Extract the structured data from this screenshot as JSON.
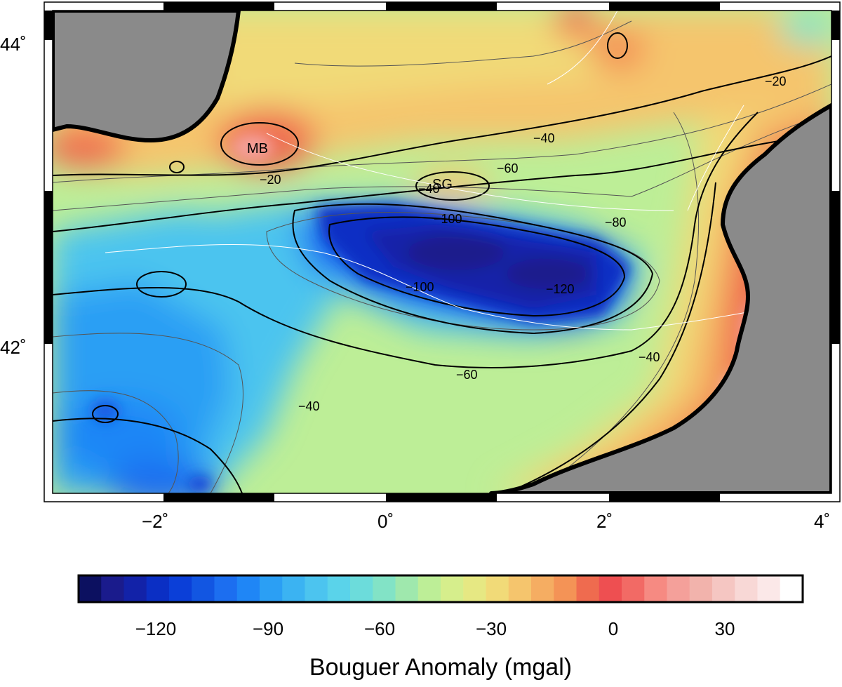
{
  "map": {
    "lon_ticks": [
      "−2˚",
      "0˚",
      "2˚",
      "4˚"
    ],
    "lat_ticks": [
      "44˚",
      "42˚"
    ],
    "land_color": "#8a8a8a",
    "coast_color": "#000000",
    "contour_labels": [
      "−20",
      "−20",
      "−40",
      "−40",
      "−40",
      "−40",
      "−60",
      "−60",
      "−80",
      "−100",
      "−100",
      "−120"
    ],
    "feature_labels": [
      "MB",
      "SG"
    ]
  },
  "colorbar": {
    "title": "Bouguer Anomaly (mgal)",
    "ticks": [
      "−120",
      "−90",
      "−60",
      "−30",
      "0",
      "30"
    ],
    "colors": [
      "#0c1060",
      "#1a1b8c",
      "#1222a8",
      "#0b2fc4",
      "#0b3fd8",
      "#1256e2",
      "#1c6ef0",
      "#1f86f6",
      "#2b9ff4",
      "#3bb3f2",
      "#4cc4ef",
      "#5ad3ea",
      "#6cdcdb",
      "#82e3c6",
      "#9fe8ad",
      "#bdee97",
      "#d6ee8c",
      "#e6e883",
      "#f1da78",
      "#f5c56d",
      "#f5ad62",
      "#f49356",
      "#ef6b4f",
      "#ee4f51",
      "#f26a65",
      "#f68a82",
      "#f4a09a",
      "#f2b3ac",
      "#f5c6c2",
      "#f8d8d6",
      "#fbe8e8",
      "#ffffff"
    ]
  }
}
